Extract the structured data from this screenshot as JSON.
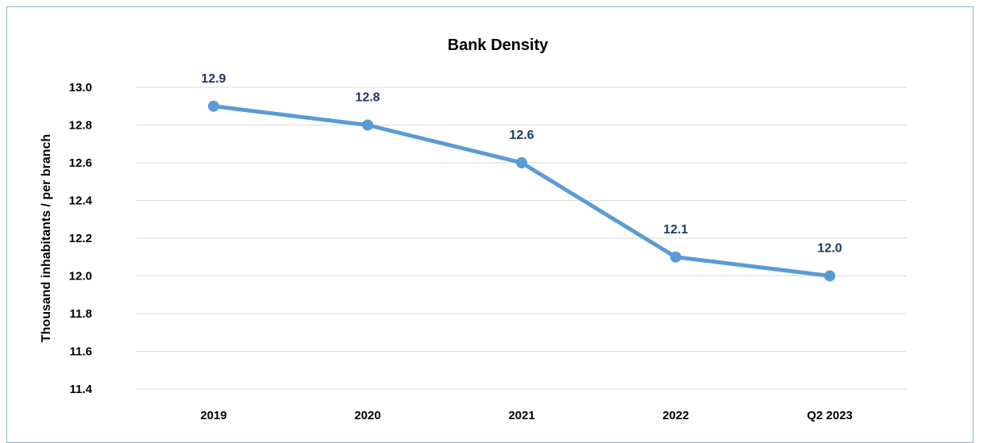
{
  "chart_data": {
    "type": "line",
    "title": "Bank Density",
    "xlabel": "",
    "ylabel": "Thousand inhabitants / per branch",
    "categories": [
      "2019",
      "2020",
      "2021",
      "2022",
      "Q2 2023"
    ],
    "series": [
      {
        "values": [
          12.9,
          12.8,
          12.6,
          12.1,
          12.0
        ]
      }
    ],
    "data_labels": [
      "12.9",
      "12.8",
      "12.6",
      "12.1",
      "12.0"
    ],
    "y_ticks": [
      "11.4",
      "11.6",
      "11.8",
      "12.0",
      "12.2",
      "12.4",
      "12.6",
      "12.8",
      "13.0"
    ],
    "ylim": [
      11.4,
      13.0
    ],
    "grid": true,
    "legend": "none",
    "line_color": "#5b9bd5",
    "label_color": "#1f3864"
  }
}
